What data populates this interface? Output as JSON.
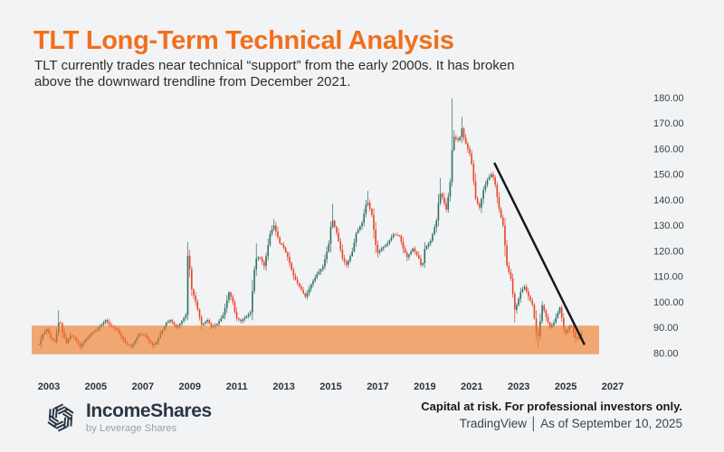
{
  "header": {
    "title": "TLT Long-Term Technical Analysis",
    "subtitle_line1": "TLT currently trades near technical “support” from the early 2000s. It has broken",
    "subtitle_line2": "above the downward trendline from December 2021."
  },
  "footer": {
    "brand_name": "IncomeShares",
    "brand_sub": "by Leverage Shares",
    "disclaimer": "Capital at risk. For professional investors only.",
    "source": "TradingView │ As of September 10, 2025"
  },
  "icons": {
    "brand_logo": "hexagon-pinwheel-icon"
  },
  "colors": {
    "background": "#F1F3F4",
    "accent_orange": "#F26F1D",
    "candle_up": "#2E6F63",
    "candle_down": "#E8432D",
    "support_zone": "#F07722",
    "trendline": "#16181A",
    "axis_text": "#3D4145",
    "brand_navy": "#2B3744"
  },
  "chart_data": {
    "type": "candlestick",
    "symbol": "TLT",
    "timeframe": "monthly",
    "grid": false,
    "x_axis": {
      "ticks": [
        2003,
        2005,
        2007,
        2009,
        2011,
        2013,
        2015,
        2017,
        2019,
        2021,
        2023,
        2025,
        2027
      ],
      "data_range": [
        2002.58,
        2025.71
      ]
    },
    "y_axis": {
      "ticks": [
        180,
        170,
        160,
        150,
        140,
        130,
        120,
        110,
        100,
        90,
        80
      ],
      "tick_format": "0.00",
      "visible_range": [
        76,
        184
      ],
      "side": "right"
    },
    "support_zone": {
      "price_top": 90.8,
      "price_bottom": 79.6,
      "meaning": "technical support from the early 2000s"
    },
    "trendline": {
      "t1": 2021.96,
      "price1": 154.5,
      "t2": 2025.8,
      "price2": 83.3,
      "meaning": "downward trendline from December 2021"
    },
    "series_anchors": [
      [
        2002.58,
        83.5
      ],
      [
        2002.75,
        87.5
      ],
      [
        2002.92,
        89.5
      ],
      [
        2003.08,
        86
      ],
      [
        2003.25,
        84.5
      ],
      [
        2003.45,
        93.5
      ],
      [
        2003.58,
        88
      ],
      [
        2003.75,
        84
      ],
      [
        2003.92,
        87
      ],
      [
        2004.08,
        86
      ],
      [
        2004.33,
        82.5
      ],
      [
        2004.58,
        85.5
      ],
      [
        2004.83,
        88
      ],
      [
        2005.08,
        89.5
      ],
      [
        2005.42,
        93
      ],
      [
        2005.58,
        91
      ],
      [
        2005.92,
        89
      ],
      [
        2006.25,
        84
      ],
      [
        2006.5,
        82.5
      ],
      [
        2006.83,
        87.5
      ],
      [
        2007.08,
        87
      ],
      [
        2007.42,
        83
      ],
      [
        2007.58,
        84.5
      ],
      [
        2007.83,
        89
      ],
      [
        2008.0,
        92
      ],
      [
        2008.17,
        93
      ],
      [
        2008.42,
        90
      ],
      [
        2008.58,
        91.5
      ],
      [
        2008.83,
        95
      ],
      [
        2008.92,
        120
      ],
      [
        2009.08,
        105
      ],
      [
        2009.25,
        100
      ],
      [
        2009.5,
        91
      ],
      [
        2009.75,
        93
      ],
      [
        2009.92,
        90
      ],
      [
        2010.17,
        91.5
      ],
      [
        2010.42,
        95
      ],
      [
        2010.67,
        104
      ],
      [
        2010.83,
        100
      ],
      [
        2010.96,
        94
      ],
      [
        2011.17,
        92.5
      ],
      [
        2011.42,
        94.5
      ],
      [
        2011.58,
        96
      ],
      [
        2011.75,
        113
      ],
      [
        2011.83,
        117
      ],
      [
        2011.96,
        118
      ],
      [
        2012.17,
        114
      ],
      [
        2012.42,
        127
      ],
      [
        2012.58,
        130
      ],
      [
        2012.83,
        123
      ],
      [
        2012.96,
        122
      ],
      [
        2013.17,
        117.5
      ],
      [
        2013.42,
        110
      ],
      [
        2013.67,
        106
      ],
      [
        2013.92,
        102
      ],
      [
        2014.17,
        107
      ],
      [
        2014.42,
        111
      ],
      [
        2014.67,
        114
      ],
      [
        2014.92,
        123
      ],
      [
        2015.04,
        133
      ],
      [
        2015.25,
        127
      ],
      [
        2015.5,
        117
      ],
      [
        2015.67,
        114.5
      ],
      [
        2015.92,
        120
      ],
      [
        2016.08,
        127
      ],
      [
        2016.33,
        131
      ],
      [
        2016.54,
        140
      ],
      [
        2016.75,
        134
      ],
      [
        2016.96,
        119
      ],
      [
        2017.17,
        121
      ],
      [
        2017.42,
        123
      ],
      [
        2017.67,
        126.5
      ],
      [
        2017.92,
        126
      ],
      [
        2018.08,
        121
      ],
      [
        2018.25,
        117.5
      ],
      [
        2018.5,
        121
      ],
      [
        2018.75,
        117
      ],
      [
        2018.88,
        113
      ],
      [
        2019.0,
        121
      ],
      [
        2019.25,
        124
      ],
      [
        2019.5,
        132
      ],
      [
        2019.63,
        143
      ],
      [
        2019.75,
        141
      ],
      [
        2019.92,
        136
      ],
      [
        2020.08,
        147
      ],
      [
        2020.2,
        165
      ],
      [
        2020.33,
        164
      ],
      [
        2020.46,
        163
      ],
      [
        2020.58,
        168
      ],
      [
        2020.67,
        164
      ],
      [
        2020.83,
        160
      ],
      [
        2020.96,
        157
      ],
      [
        2021.17,
        140
      ],
      [
        2021.33,
        137
      ],
      [
        2021.5,
        144
      ],
      [
        2021.67,
        148
      ],
      [
        2021.83,
        150
      ],
      [
        2021.96,
        148
      ],
      [
        2022.17,
        136
      ],
      [
        2022.33,
        130
      ],
      [
        2022.5,
        114
      ],
      [
        2022.67,
        109
      ],
      [
        2022.83,
        97
      ],
      [
        2022.96,
        100
      ],
      [
        2023.08,
        104
      ],
      [
        2023.25,
        106
      ],
      [
        2023.42,
        102
      ],
      [
        2023.58,
        99
      ],
      [
        2023.75,
        88
      ],
      [
        2023.79,
        84
      ],
      [
        2023.92,
        93
      ],
      [
        2024.0,
        99
      ],
      [
        2024.17,
        94
      ],
      [
        2024.33,
        90
      ],
      [
        2024.5,
        92
      ],
      [
        2024.67,
        96
      ],
      [
        2024.75,
        98
      ],
      [
        2024.92,
        89
      ],
      [
        2024.96,
        87.5
      ],
      [
        2025.08,
        89
      ],
      [
        2025.21,
        91.5
      ],
      [
        2025.33,
        88
      ],
      [
        2025.42,
        86
      ],
      [
        2025.54,
        85.5
      ],
      [
        2025.63,
        87
      ],
      [
        2025.71,
        88.5
      ]
    ],
    "wick_highs": [
      [
        2003.45,
        96.8
      ],
      [
        2008.92,
        123.5
      ],
      [
        2011.83,
        123
      ],
      [
        2012.58,
        132.5
      ],
      [
        2015.04,
        138.5
      ],
      [
        2016.54,
        143.5
      ],
      [
        2019.63,
        148.5
      ],
      [
        2020.2,
        179.7
      ],
      [
        2020.58,
        172.5
      ]
    ],
    "wick_lows": [
      [
        2022.83,
        91.9
      ],
      [
        2023.79,
        82.4
      ],
      [
        2025.42,
        83.9
      ]
    ]
  }
}
